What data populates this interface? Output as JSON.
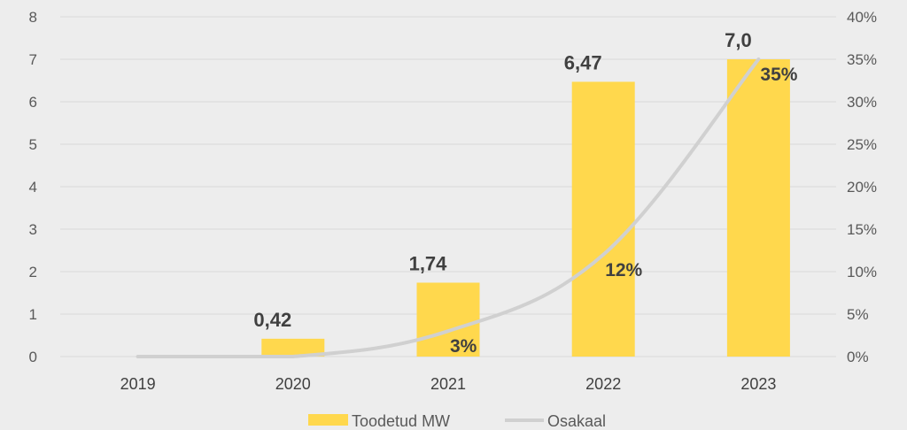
{
  "chart_data": {
    "type": "bar",
    "categories": [
      "2019",
      "2020",
      "2021",
      "2022",
      "2023"
    ],
    "series": [
      {
        "name": "Toodetud MW",
        "type": "bar",
        "axis": "left",
        "values": [
          0,
          0.42,
          1.74,
          6.47,
          7.0
        ],
        "labels": [
          "",
          "0,42",
          "1,74",
          "6,47",
          "7,0"
        ],
        "color": "#ffd84d"
      },
      {
        "name": "Osakaal",
        "type": "line",
        "axis": "right",
        "values": [
          0,
          0,
          3,
          12,
          35
        ],
        "labels": [
          "",
          "",
          "3%",
          "12%",
          "35%"
        ],
        "color": "#d0d0d0"
      }
    ],
    "y_left": {
      "ylim": [
        0,
        8
      ],
      "ticks": [
        "0",
        "1",
        "2",
        "3",
        "4",
        "5",
        "6",
        "7",
        "8"
      ]
    },
    "y_right": {
      "ylim": [
        0,
        40
      ],
      "ticks": [
        "0%",
        "5%",
        "10%",
        "15%",
        "20%",
        "25%",
        "30%",
        "35%",
        "40%"
      ]
    },
    "grid": true,
    "legend": "bottom",
    "gridColor": "#d9d9d9",
    "background": "#ededed"
  }
}
